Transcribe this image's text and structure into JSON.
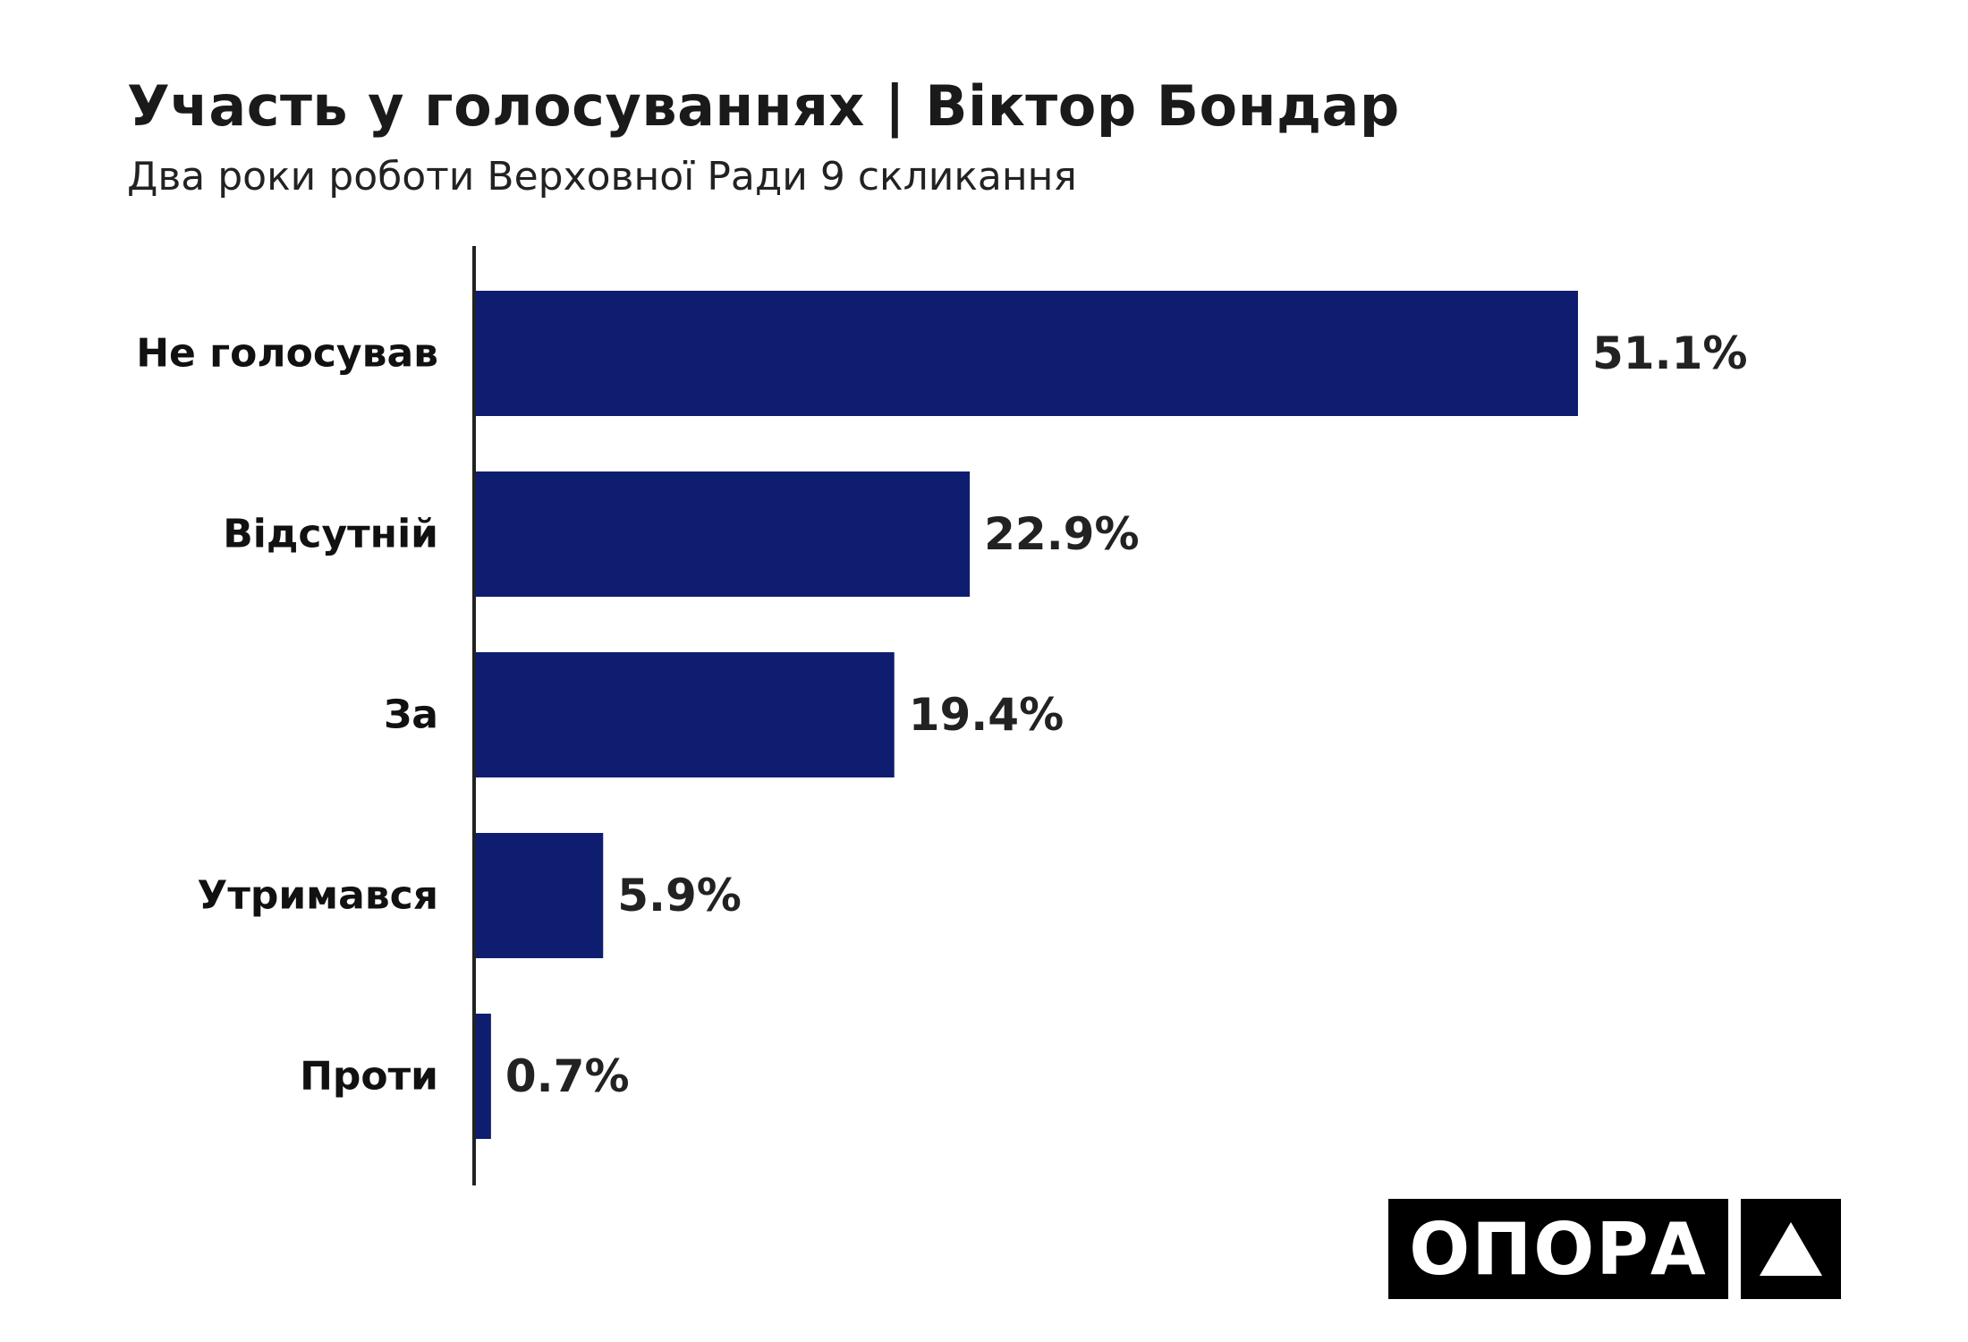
{
  "header": {
    "title": "Участь у голосуваннях | Віктор Бондар",
    "subtitle": "Два роки роботи Верховної Ради 9 скликання"
  },
  "chart_data": {
    "type": "bar",
    "orientation": "horizontal",
    "title": "Участь у голосуваннях | Віктор Бондар",
    "subtitle": "Два роки роботи Верховної Ради 9 скликання",
    "categories": [
      "Не голосував",
      "Відсутній",
      "За",
      "Утримався",
      "Проти"
    ],
    "values": [
      51.1,
      22.9,
      19.4,
      5.9,
      0.7
    ],
    "value_labels": [
      "51.1%",
      "22.9%",
      "19.4%",
      "5.9%",
      "0.7%"
    ],
    "xlabel": "",
    "ylabel": "",
    "xlim": [
      0,
      51.1
    ],
    "grid": false,
    "legend": "none",
    "colors": {
      "bar": "#0f1d70",
      "axis": "#222222"
    }
  },
  "logo": {
    "text": "ОПОРА",
    "mark_icon": "triangle-icon",
    "colors": {
      "background": "#000000",
      "foreground": "#ffffff"
    }
  }
}
